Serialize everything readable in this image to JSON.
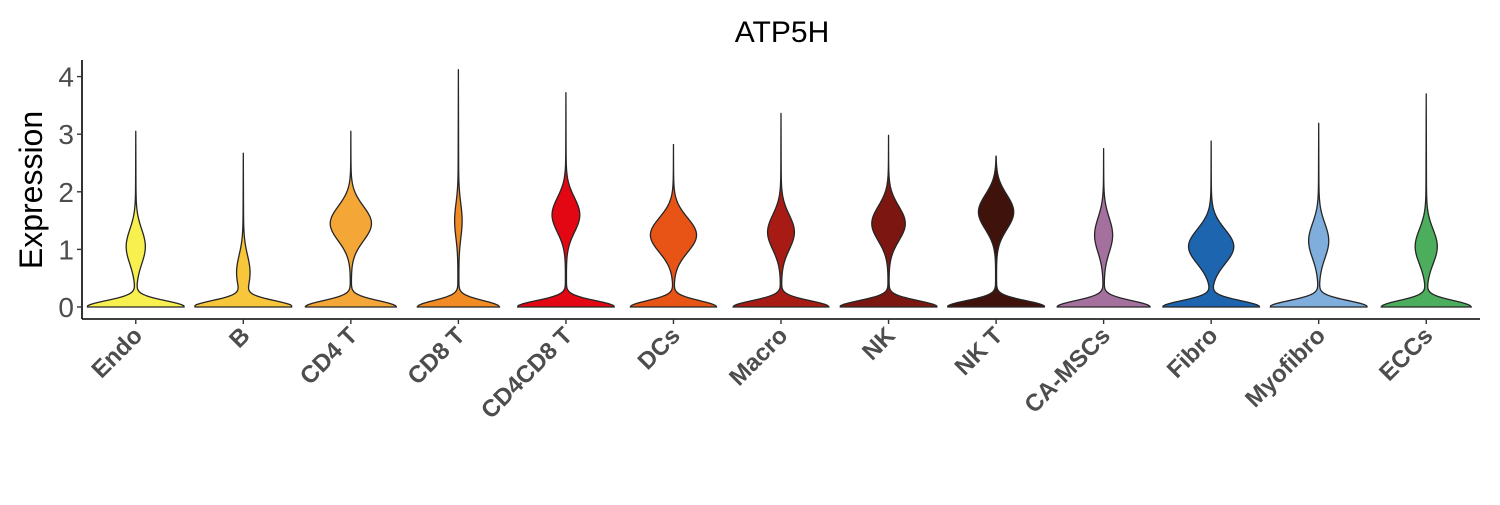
{
  "chart_data": {
    "type": "violin",
    "title": "ATP5H",
    "ylabel": "Expression",
    "xlabel": "",
    "ylim": [
      -0.2,
      4.3
    ],
    "yticks": [
      0,
      1,
      2,
      3,
      4
    ],
    "grid": false,
    "legend": "none",
    "categories": [
      "Endo",
      "B",
      "CD4 T",
      "CD8 T",
      "CD4CD8 T",
      "DCs",
      "Macro",
      "NK",
      "NK T",
      "CA-MSCs",
      "Fibro",
      "Myofibro",
      "ECCs"
    ],
    "series": [
      {
        "values": {
          "max": 3.05,
          "modes": [
            [
              0,
              1.0
            ],
            [
              1.05,
              0.19
            ]
          ]
        },
        "color": "#F7F04F"
      },
      {
        "values": {
          "max": 2.67,
          "modes": [
            [
              0,
              1.0
            ],
            [
              0.6,
              0.13
            ]
          ]
        },
        "color": "#F7C63A"
      },
      {
        "values": {
          "max": 3.05,
          "modes": [
            [
              0,
              0.93
            ],
            [
              1.45,
              0.42
            ]
          ]
        },
        "color": "#F4A637"
      },
      {
        "values": {
          "max": 4.12,
          "modes": [
            [
              0,
              0.84
            ],
            [
              1.5,
              0.07
            ]
          ]
        },
        "color": "#F18B23"
      },
      {
        "values": {
          "max": 3.72,
          "modes": [
            [
              0,
              1.0
            ],
            [
              1.6,
              0.28
            ]
          ]
        },
        "color": "#E30613"
      },
      {
        "values": {
          "max": 2.82,
          "modes": [
            [
              0,
              0.88
            ],
            [
              1.25,
              0.47
            ]
          ]
        },
        "color": "#E85416"
      },
      {
        "values": {
          "max": 3.36,
          "modes": [
            [
              0,
              0.98
            ],
            [
              1.3,
              0.27
            ]
          ]
        },
        "color": "#A81B14"
      },
      {
        "values": {
          "max": 2.98,
          "modes": [
            [
              0,
              1.0
            ],
            [
              1.45,
              0.34
            ]
          ]
        },
        "color": "#7B1610"
      },
      {
        "values": {
          "max": 2.62,
          "modes": [
            [
              0,
              1.0
            ],
            [
              1.65,
              0.36
            ]
          ]
        },
        "color": "#3F130B"
      },
      {
        "values": {
          "max": 2.75,
          "modes": [
            [
              0,
              0.95
            ],
            [
              1.25,
              0.18
            ]
          ]
        },
        "color": "#A4719E"
      },
      {
        "values": {
          "max": 2.88,
          "modes": [
            [
              0,
              0.99
            ],
            [
              1.05,
              0.46
            ]
          ]
        },
        "color": "#1D65AE"
      },
      {
        "values": {
          "max": 3.19,
          "modes": [
            [
              0,
              1.0
            ],
            [
              1.15,
              0.2
            ]
          ]
        },
        "color": "#7FAEDC"
      },
      {
        "values": {
          "max": 3.7,
          "modes": [
            [
              0,
              0.92
            ],
            [
              1.05,
              0.22
            ]
          ]
        },
        "color": "#4CAE5D"
      }
    ]
  }
}
